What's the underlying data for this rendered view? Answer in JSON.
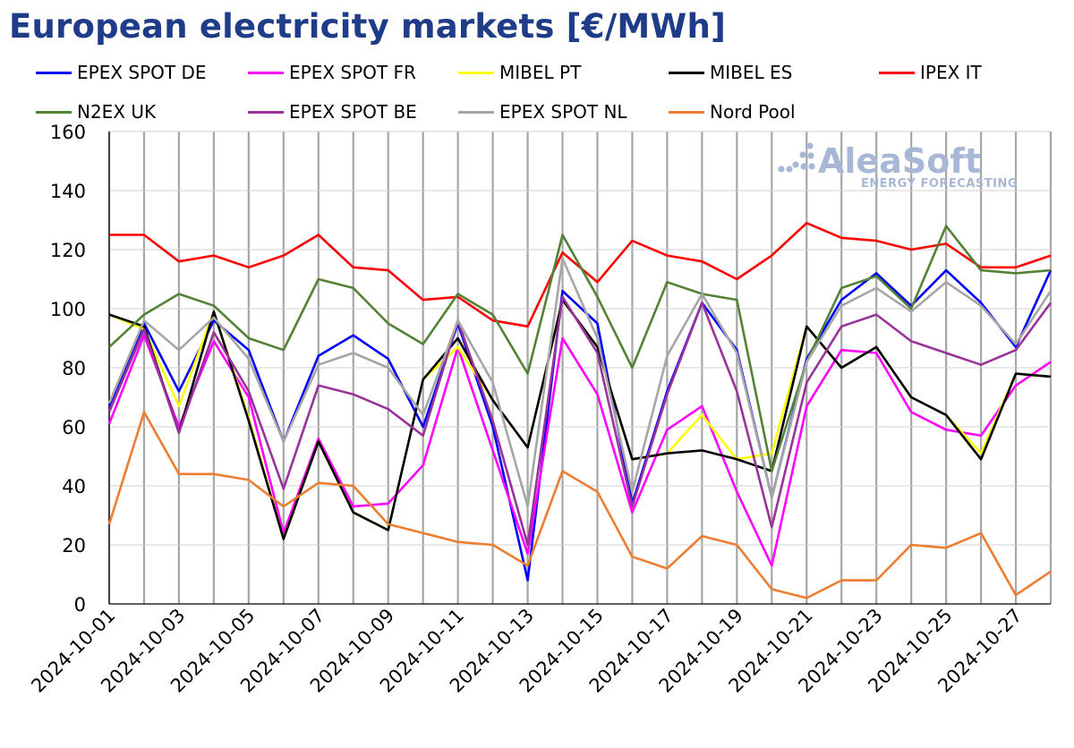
{
  "colors": {
    "title": "#1f3c88",
    "grid": "#a6a6a6",
    "axis": "#000000",
    "watermark": "#a9b7d6"
  },
  "watermark": {
    "brand": "AleaSoft",
    "tagline": "ENERGY FORECASTING"
  },
  "chart_data": {
    "type": "line",
    "title": "European electricity markets [€/MWh]",
    "xlabel": "",
    "ylabel": "",
    "ylim": [
      0,
      160
    ],
    "yticks": [
      0,
      20,
      40,
      60,
      80,
      100,
      120,
      140,
      160
    ],
    "grid": "vertical and horizontal",
    "legend_position": "top",
    "x": [
      "2024-10-01",
      "2024-10-02",
      "2024-10-03",
      "2024-10-04",
      "2024-10-05",
      "2024-10-06",
      "2024-10-07",
      "2024-10-08",
      "2024-10-09",
      "2024-10-10",
      "2024-10-11",
      "2024-10-12",
      "2024-10-13",
      "2024-10-14",
      "2024-10-15",
      "2024-10-16",
      "2024-10-17",
      "2024-10-18",
      "2024-10-19",
      "2024-10-20",
      "2024-10-21",
      "2024-10-22",
      "2024-10-23",
      "2024-10-24",
      "2024-10-25",
      "2024-10-26",
      "2024-10-27",
      "2024-10-28"
    ],
    "xtick_labels": [
      "2024-10-01",
      "2024-10-03",
      "2024-10-05",
      "2024-10-07",
      "2024-10-09",
      "2024-10-11",
      "2024-10-13",
      "2024-10-15",
      "2024-10-17",
      "2024-10-19",
      "2024-10-21",
      "2024-10-23",
      "2024-10-25",
      "2024-10-27"
    ],
    "series": [
      {
        "name": "EPEX SPOT DE",
        "color": "#0000ff",
        "values": [
          67,
          95,
          72,
          96,
          86,
          55,
          84,
          91,
          83,
          60,
          95,
          60,
          8,
          106,
          95,
          34,
          72,
          102,
          86,
          36,
          83,
          103,
          112,
          101,
          113,
          102,
          87,
          113
        ]
      },
      {
        "name": "EPEX SPOT FR",
        "color": "#ff00ff",
        "values": [
          61,
          91,
          60,
          89,
          70,
          24,
          56,
          33,
          34,
          47,
          87,
          52,
          17,
          90,
          71,
          31,
          59,
          67,
          38,
          13,
          67,
          86,
          85,
          65,
          59,
          57,
          74,
          82
        ]
      },
      {
        "name": "MIBEL PT",
        "color": "#ffff00",
        "values": [
          98,
          93,
          67,
          99,
          63,
          22,
          55,
          31,
          25,
          76,
          87,
          69,
          53,
          103,
          87,
          49,
          51,
          64,
          49,
          51,
          94,
          80,
          87,
          70,
          64,
          51,
          78,
          77
        ]
      },
      {
        "name": "MIBEL ES",
        "color": "#000000",
        "values": [
          98,
          94,
          58,
          99,
          62,
          22,
          55,
          31,
          25,
          76,
          90,
          69,
          53,
          103,
          87,
          49,
          51,
          52,
          49,
          45,
          94,
          80,
          87,
          70,
          64,
          49,
          78,
          77
        ]
      },
      {
        "name": "IPEX IT",
        "color": "#ff0000",
        "values": [
          125,
          125,
          116,
          118,
          114,
          118,
          125,
          114,
          113,
          103,
          104,
          96,
          94,
          119,
          109,
          123,
          118,
          116,
          110,
          118,
          129,
          124,
          123,
          120,
          122,
          114,
          114,
          118
        ]
      },
      {
        "name": "N2EX UK",
        "color": "#548235",
        "values": [
          87,
          98,
          105,
          101,
          90,
          86,
          110,
          107,
          95,
          88,
          105,
          98,
          78,
          125,
          104,
          80,
          109,
          105,
          103,
          45,
          82,
          107,
          111,
          100,
          128,
          113,
          112,
          113
        ]
      },
      {
        "name": "EPEX SPOT BE",
        "color": "#993399",
        "values": [
          65,
          93,
          58,
          92,
          72,
          39,
          74,
          71,
          66,
          57,
          96,
          62,
          20,
          104,
          85,
          33,
          71,
          102,
          72,
          26,
          75,
          94,
          98,
          89,
          85,
          81,
          86,
          102
        ]
      },
      {
        "name": "EPEX SPOT NL",
        "color": "#a6a6a6",
        "values": [
          68,
          96,
          86,
          97,
          83,
          55,
          81,
          85,
          80,
          64,
          96,
          75,
          33,
          117,
          90,
          38,
          84,
          105,
          85,
          36,
          82,
          101,
          107,
          99,
          109,
          101,
          88,
          106
        ]
      },
      {
        "name": "Nord Pool",
        "color": "#ed7d31",
        "values": [
          27,
          65,
          44,
          44,
          42,
          33,
          41,
          40,
          27,
          24,
          21,
          20,
          13,
          45,
          38,
          16,
          12,
          23,
          20,
          5,
          2,
          8,
          8,
          20,
          19,
          24,
          3,
          11
        ]
      }
    ]
  }
}
